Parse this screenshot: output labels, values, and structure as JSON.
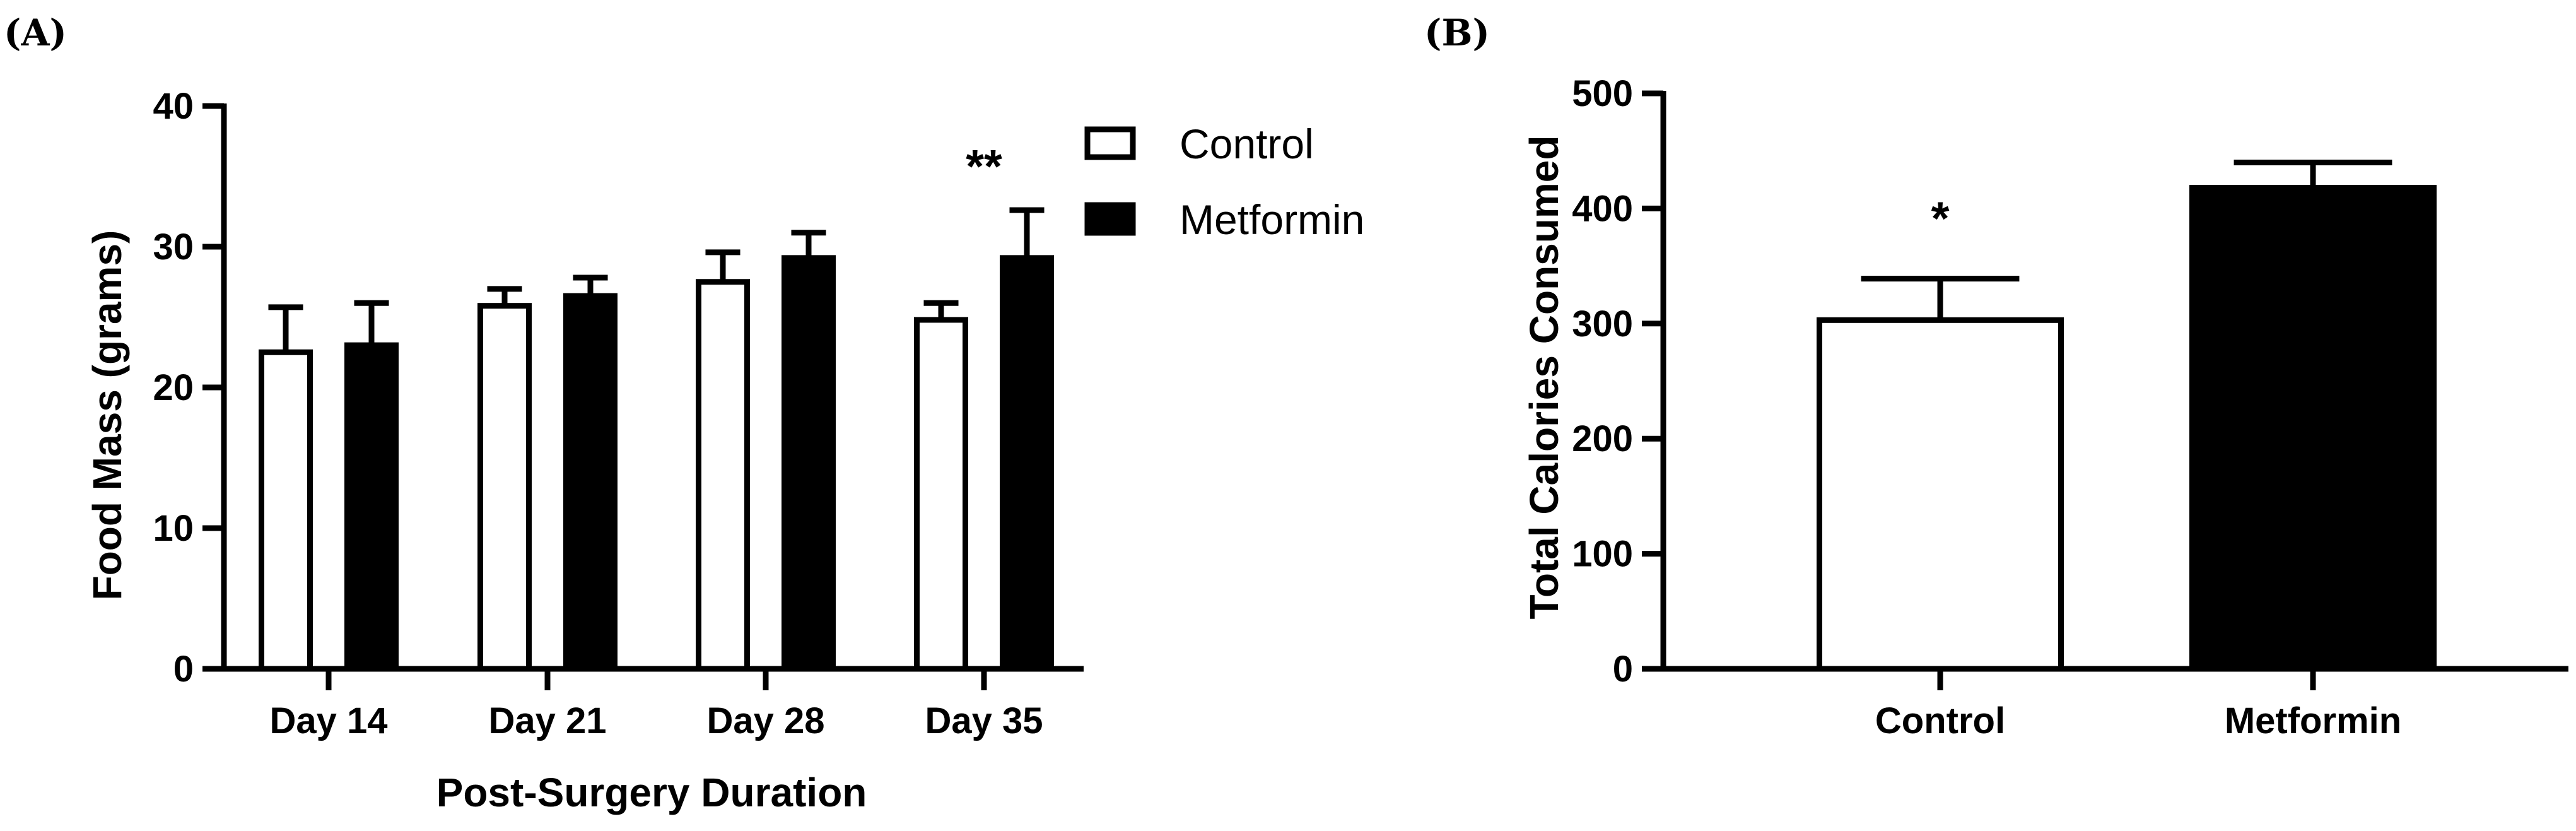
{
  "chart_data": [
    {
      "panel": "(A)",
      "type": "bar",
      "categories": [
        "Day 14",
        "Day 21",
        "Day 28",
        "Day 35"
      ],
      "series": [
        {
          "name": "Control",
          "fill": "#ffffff",
          "values": [
            22.5,
            25.8,
            27.5,
            24.8
          ],
          "errors": [
            3.2,
            1.2,
            2.1,
            1.2
          ]
        },
        {
          "name": "Metformin",
          "fill": "#000000",
          "values": [
            23.0,
            26.5,
            29.2,
            29.2
          ],
          "errors": [
            3.0,
            1.3,
            1.8,
            3.4
          ]
        }
      ],
      "xlabel": "Post-Surgery Duration",
      "ylabel": "Food Mass (grams)",
      "ylim": [
        0,
        40
      ],
      "yticks": [
        0,
        10,
        20,
        30,
        40
      ],
      "legend": "top-right",
      "annotations": [
        {
          "category": "Day 35",
          "text": "**"
        }
      ]
    },
    {
      "panel": "(B)",
      "type": "bar",
      "categories": [
        "Control",
        "Metformin"
      ],
      "values": [
        303,
        418
      ],
      "errors": [
        36,
        22
      ],
      "fills": [
        "#ffffff",
        "#000000"
      ],
      "xlabel": "",
      "ylabel": "Total Calories Consumed",
      "ylim": [
        0,
        500
      ],
      "yticks": [
        0,
        100,
        200,
        300,
        400,
        500
      ],
      "annotations": [
        {
          "category": "Control",
          "text": "*"
        }
      ]
    }
  ]
}
